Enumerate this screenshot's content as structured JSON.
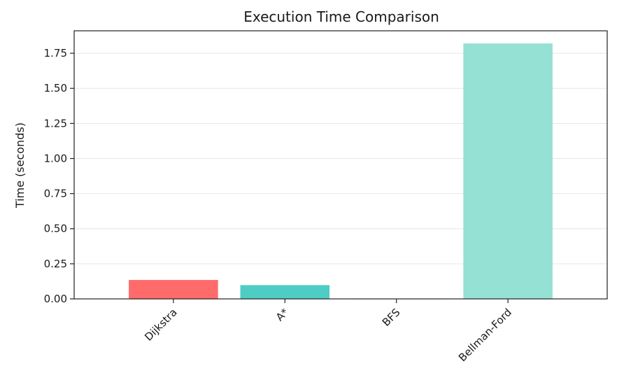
{
  "chart_data": {
    "type": "bar",
    "title": "Execution Time Comparison",
    "xlabel": "",
    "ylabel": "Time (seconds)",
    "categories": [
      "Dijkstra",
      "A*",
      "BFS",
      "Bellman-Ford"
    ],
    "values": [
      0.135,
      0.098,
      0.003,
      1.82
    ],
    "colors": [
      "#ff6b6b",
      "#4ecdc4",
      "#ffe66d",
      "#95e1d3"
    ],
    "ylim": [
      0,
      1.91
    ],
    "yticks": [
      0.0,
      0.25,
      0.5,
      0.75,
      1.0,
      1.25,
      1.5,
      1.75
    ],
    "ytick_labels": [
      "0.00",
      "0.25",
      "0.50",
      "0.75",
      "1.00",
      "1.25",
      "1.50",
      "1.75"
    ],
    "grid": "y",
    "legend": "none"
  }
}
